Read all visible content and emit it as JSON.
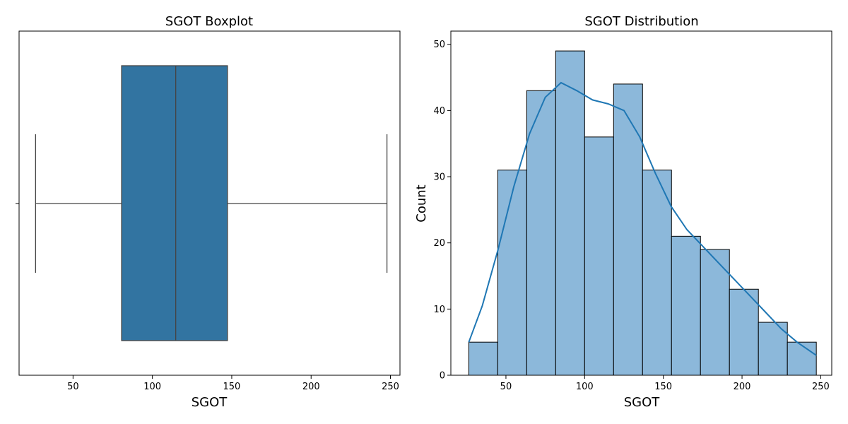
{
  "chart_data": [
    {
      "type": "boxplot",
      "title": "SGOT Boxplot",
      "xlabel": "SGOT",
      "ylabel": "",
      "xlim": [
        16,
        256
      ],
      "xticks": [
        50,
        100,
        150,
        200,
        250
      ],
      "grid": false,
      "box": {
        "whisker_low": 26.4,
        "q1": 80.6,
        "median": 114.7,
        "q3": 147.3,
        "whisker_high": 247.8
      },
      "color": "#3274a1",
      "line_color": "#444444"
    },
    {
      "type": "histogram",
      "title": "SGOT Distribution",
      "xlabel": "SGOT",
      "ylabel": "Count",
      "xlim": [
        15,
        257
      ],
      "ylim": [
        0,
        52
      ],
      "xticks": [
        50,
        100,
        150,
        200,
        250
      ],
      "yticks": [
        0,
        10,
        20,
        30,
        40,
        50
      ],
      "grid": false,
      "bin_edges": [
        26.4,
        44.8,
        63.2,
        81.6,
        100.0,
        118.4,
        136.8,
        155.2,
        173.6,
        192.0,
        210.4,
        228.8,
        247.2
      ],
      "counts": [
        5,
        31,
        43,
        49,
        36,
        44,
        31,
        21,
        19,
        13,
        8,
        5
      ],
      "kde": {
        "x": [
          26.4,
          35,
          45,
          55,
          65,
          75,
          85,
          95,
          105,
          115,
          125,
          135,
          145,
          155,
          165,
          175,
          185,
          195,
          205,
          215,
          225,
          235,
          247.2
        ],
        "y": [
          5.0,
          10.5,
          19.0,
          28.5,
          36.5,
          42.0,
          44.2,
          43.0,
          41.6,
          41.0,
          40.0,
          36.0,
          30.5,
          25.5,
          22.0,
          19.5,
          17.0,
          14.5,
          12.0,
          9.5,
          7.0,
          5.0,
          3.0
        ]
      },
      "bar_fill": "#8cb8da",
      "bar_edge": "#000000",
      "kde_color": "#1f77b4"
    }
  ]
}
